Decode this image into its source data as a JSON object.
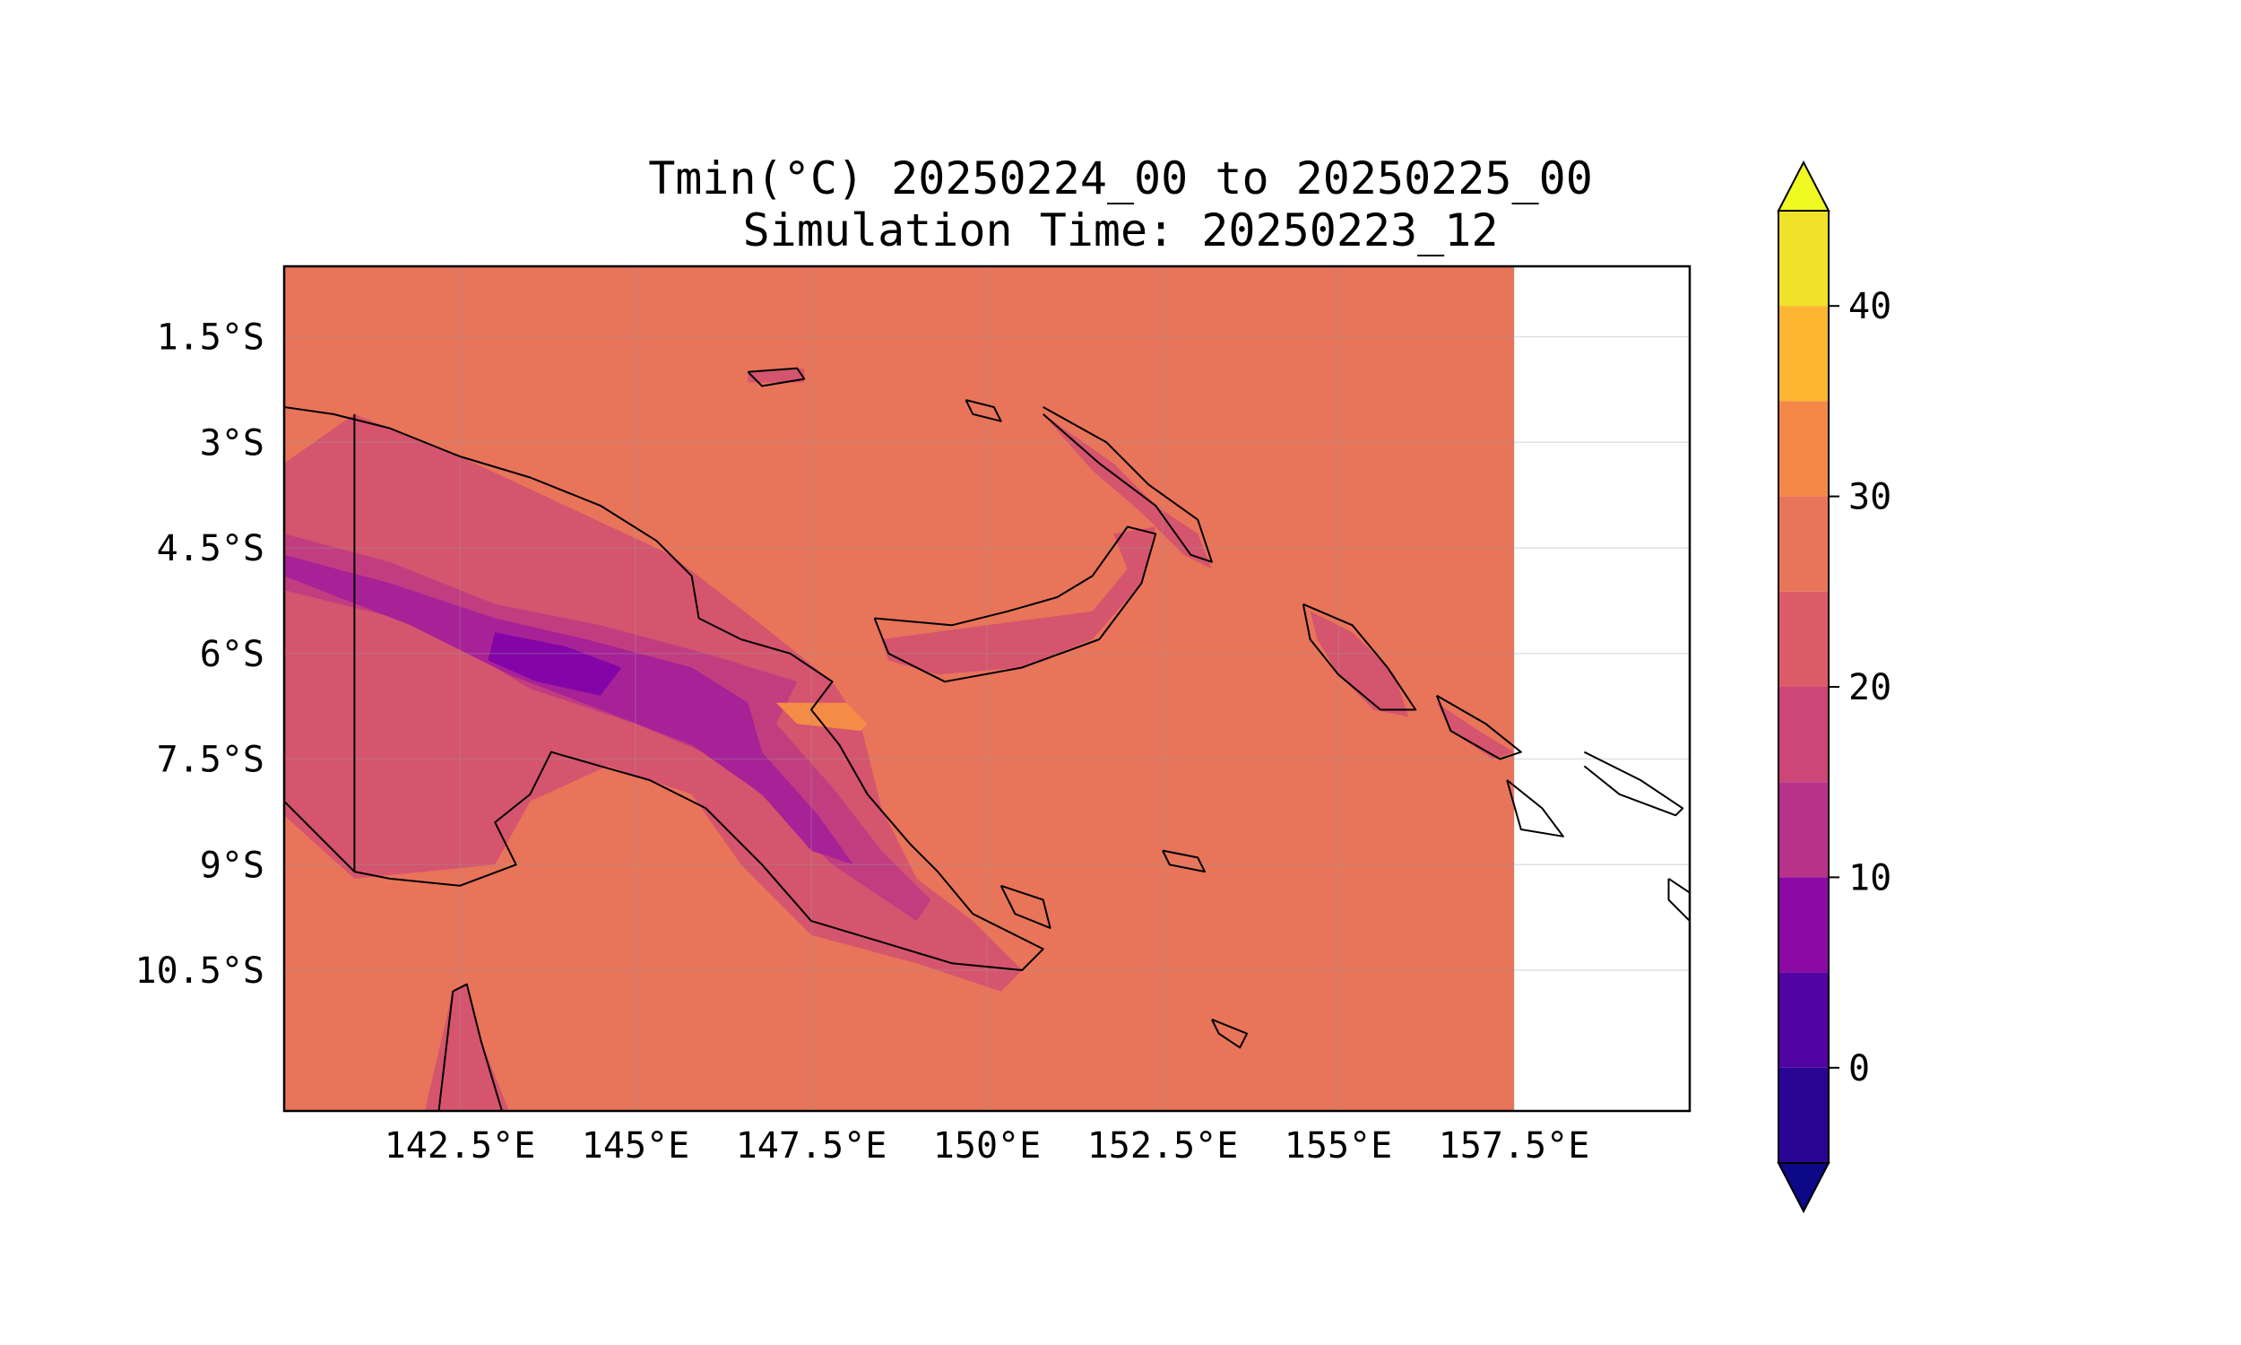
{
  "title": {
    "line1": "Tmin(°C) 20250224_00 to 20250225_00",
    "line2": "Simulation Time: 20250223_12"
  },
  "map": {
    "extent_lon": [
      140.0,
      160.0
    ],
    "extent_lat": [
      -12.5,
      -0.5
    ],
    "data_lon_max": 157.5,
    "background_color": "#e8745a",
    "missing_color": "#ffffff",
    "coastline_color": "#000000",
    "gridlines": true,
    "x_ticks": [
      {
        "value": 142.5,
        "label": "142.5°E"
      },
      {
        "value": 145.0,
        "label": "145°E"
      },
      {
        "value": 147.5,
        "label": "147.5°E"
      },
      {
        "value": 150.0,
        "label": "150°E"
      },
      {
        "value": 152.5,
        "label": "152.5°E"
      },
      {
        "value": 155.0,
        "label": "155°E"
      },
      {
        "value": 157.5,
        "label": "157.5°E"
      }
    ],
    "y_ticks": [
      {
        "value": -1.5,
        "label": "1.5°S"
      },
      {
        "value": -3.0,
        "label": "3°S"
      },
      {
        "value": -4.5,
        "label": "4.5°S"
      },
      {
        "value": -6.0,
        "label": "6°S"
      },
      {
        "value": -7.5,
        "label": "7.5°S"
      },
      {
        "value": -9.0,
        "label": "9°S"
      },
      {
        "value": -10.5,
        "label": "10.5°S"
      }
    ],
    "regions": [
      {
        "name": "new-guinea-lowland",
        "level": 22.5,
        "color": "#d5546e",
        "points": [
          [
            140.0,
            -3.3
          ],
          [
            141.0,
            -2.6
          ],
          [
            142.5,
            -3.2
          ],
          [
            144.0,
            -3.9
          ],
          [
            145.5,
            -4.6
          ],
          [
            146.8,
            -5.6
          ],
          [
            147.8,
            -6.4
          ],
          [
            148.2,
            -7.0
          ],
          [
            148.5,
            -8.2
          ],
          [
            149.0,
            -9.2
          ],
          [
            149.8,
            -9.8
          ],
          [
            150.5,
            -10.5
          ],
          [
            150.2,
            -10.8
          ],
          [
            149.0,
            -10.4
          ],
          [
            147.5,
            -10.0
          ],
          [
            146.5,
            -9.0
          ],
          [
            145.8,
            -8.0
          ],
          [
            144.6,
            -7.6
          ],
          [
            143.5,
            -8.1
          ],
          [
            143.0,
            -9.0
          ],
          [
            141.0,
            -9.2
          ],
          [
            140.0,
            -8.3
          ]
        ]
      },
      {
        "name": "highlands-outer",
        "level": 17.5,
        "color": "#c23d80",
        "points": [
          [
            140.0,
            -4.3
          ],
          [
            141.5,
            -4.7
          ],
          [
            143.0,
            -5.3
          ],
          [
            144.5,
            -5.6
          ],
          [
            146.0,
            -6.0
          ],
          [
            147.3,
            -6.4
          ],
          [
            147.0,
            -7.0
          ],
          [
            147.8,
            -7.9
          ],
          [
            148.5,
            -8.8
          ],
          [
            149.2,
            -9.5
          ],
          [
            149.0,
            -9.8
          ],
          [
            147.8,
            -9.0
          ],
          [
            147.0,
            -8.2
          ],
          [
            146.2,
            -7.5
          ],
          [
            145.0,
            -7.0
          ],
          [
            143.5,
            -6.5
          ],
          [
            142.0,
            -5.6
          ],
          [
            140.0,
            -5.1
          ]
        ]
      },
      {
        "name": "highlands-inner",
        "level": 12.5,
        "color": "#a72197",
        "points": [
          [
            140.0,
            -4.6
          ],
          [
            141.5,
            -5.0
          ],
          [
            143.0,
            -5.5
          ],
          [
            144.3,
            -5.8
          ],
          [
            145.8,
            -6.2
          ],
          [
            146.6,
            -6.7
          ],
          [
            146.8,
            -7.4
          ],
          [
            147.6,
            -8.3
          ],
          [
            148.1,
            -9.0
          ],
          [
            147.5,
            -8.8
          ],
          [
            146.8,
            -8.0
          ],
          [
            145.8,
            -7.3
          ],
          [
            144.5,
            -6.8
          ],
          [
            143.2,
            -6.3
          ],
          [
            141.8,
            -5.6
          ],
          [
            140.0,
            -4.9
          ]
        ]
      },
      {
        "name": "highlands-core",
        "level": 7.5,
        "color": "#8305a7",
        "points": [
          [
            143.0,
            -5.7
          ],
          [
            144.0,
            -5.9
          ],
          [
            144.8,
            -6.2
          ],
          [
            144.5,
            -6.6
          ],
          [
            143.6,
            -6.4
          ],
          [
            142.9,
            -6.1
          ]
        ]
      },
      {
        "name": "new-britain",
        "level": 22.5,
        "color": "#d5546e",
        "points": [
          [
            148.5,
            -5.8
          ],
          [
            150.0,
            -5.6
          ],
          [
            151.5,
            -5.4
          ],
          [
            152.0,
            -4.8
          ],
          [
            151.8,
            -4.3
          ],
          [
            152.4,
            -4.2
          ],
          [
            152.2,
            -5.0
          ],
          [
            151.5,
            -5.8
          ],
          [
            150.5,
            -6.2
          ],
          [
            149.3,
            -6.3
          ],
          [
            148.6,
            -6.1
          ]
        ]
      },
      {
        "name": "new-ireland",
        "level": 22.5,
        "color": "#d5546e",
        "points": [
          [
            150.8,
            -2.6
          ],
          [
            151.8,
            -3.3
          ],
          [
            152.4,
            -3.9
          ],
          [
            153.0,
            -4.3
          ],
          [
            153.2,
            -4.8
          ],
          [
            152.8,
            -4.6
          ],
          [
            152.2,
            -4.0
          ],
          [
            151.5,
            -3.4
          ]
        ]
      },
      {
        "name": "bougainville",
        "level": 22.5,
        "color": "#d5546e",
        "points": [
          [
            154.6,
            -5.4
          ],
          [
            155.2,
            -5.7
          ],
          [
            155.8,
            -6.3
          ],
          [
            156.0,
            -6.9
          ],
          [
            155.5,
            -6.8
          ],
          [
            155.0,
            -6.3
          ],
          [
            154.7,
            -5.8
          ]
        ]
      },
      {
        "name": "choiseul",
        "level": 22.5,
        "color": "#d5546e",
        "points": [
          [
            156.4,
            -6.7
          ],
          [
            157.0,
            -7.1
          ],
          [
            157.5,
            -7.4
          ],
          [
            157.2,
            -7.5
          ],
          [
            156.6,
            -7.1
          ]
        ]
      },
      {
        "name": "manus",
        "level": 22.5,
        "color": "#d5546e",
        "points": [
          [
            146.6,
            -2.0
          ],
          [
            147.4,
            -1.95
          ],
          [
            147.4,
            -2.15
          ],
          [
            146.6,
            -2.15
          ]
        ]
      },
      {
        "name": "cape-york",
        "level": 22.5,
        "color": "#d5546e",
        "points": [
          [
            142.0,
            -12.5
          ],
          [
            142.4,
            -10.8
          ],
          [
            142.6,
            -10.7
          ],
          [
            142.8,
            -11.5
          ],
          [
            143.2,
            -12.5
          ]
        ]
      },
      {
        "name": "warm-patch",
        "level": 32.5,
        "color": "#f58c46",
        "points": [
          [
            147.0,
            -6.7
          ],
          [
            148.0,
            -6.7
          ],
          [
            148.3,
            -7.0
          ],
          [
            148.2,
            -7.1
          ],
          [
            147.3,
            -7.0
          ]
        ]
      }
    ],
    "coastlines": [
      [
        [
          140.0,
          -2.5
        ],
        [
          140.7,
          -2.6
        ],
        [
          141.5,
          -2.8
        ],
        [
          142.5,
          -3.2
        ],
        [
          143.5,
          -3.5
        ],
        [
          144.5,
          -3.9
        ],
        [
          145.3,
          -4.4
        ],
        [
          145.8,
          -4.9
        ],
        [
          145.9,
          -5.5
        ],
        [
          146.5,
          -5.8
        ],
        [
          147.2,
          -6.0
        ],
        [
          147.8,
          -6.4
        ],
        [
          147.5,
          -6.8
        ],
        [
          147.9,
          -7.3
        ],
        [
          148.3,
          -8.0
        ],
        [
          148.9,
          -8.7
        ],
        [
          149.3,
          -9.1
        ],
        [
          149.8,
          -9.7
        ],
        [
          150.8,
          -10.2
        ],
        [
          150.5,
          -10.5
        ],
        [
          149.5,
          -10.4
        ],
        [
          148.5,
          -10.1
        ],
        [
          147.5,
          -9.8
        ],
        [
          146.8,
          -9.0
        ],
        [
          146.0,
          -8.2
        ],
        [
          145.2,
          -7.8
        ],
        [
          144.5,
          -7.6
        ],
        [
          143.8,
          -7.4
        ],
        [
          143.5,
          -8.0
        ],
        [
          143.0,
          -8.4
        ],
        [
          143.3,
          -9.0
        ],
        [
          142.5,
          -9.3
        ],
        [
          141.5,
          -9.2
        ],
        [
          141.0,
          -9.1
        ],
        [
          140.0,
          -8.1
        ]
      ],
      [
        [
          141.0,
          -2.6
        ],
        [
          141.0,
          -9.1
        ]
      ],
      [
        [
          148.4,
          -5.5
        ],
        [
          149.5,
          -5.6
        ],
        [
          150.3,
          -5.4
        ],
        [
          151.0,
          -5.2
        ],
        [
          151.5,
          -4.9
        ],
        [
          152.0,
          -4.2
        ],
        [
          152.4,
          -4.3
        ],
        [
          152.2,
          -5.0
        ],
        [
          151.6,
          -5.8
        ],
        [
          150.5,
          -6.2
        ],
        [
          149.4,
          -6.4
        ],
        [
          148.6,
          -6.0
        ],
        [
          148.4,
          -5.5
        ]
      ],
      [
        [
          150.8,
          -2.5
        ],
        [
          151.7,
          -3.0
        ],
        [
          152.3,
          -3.6
        ],
        [
          153.0,
          -4.1
        ],
        [
          153.2,
          -4.7
        ],
        [
          152.9,
          -4.6
        ],
        [
          152.4,
          -3.9
        ],
        [
          151.6,
          -3.3
        ],
        [
          150.8,
          -2.6
        ]
      ],
      [
        [
          154.5,
          -5.3
        ],
        [
          155.2,
          -5.6
        ],
        [
          155.7,
          -6.2
        ],
        [
          156.1,
          -6.8
        ],
        [
          155.6,
          -6.8
        ],
        [
          155.0,
          -6.3
        ],
        [
          154.6,
          -5.8
        ],
        [
          154.5,
          -5.3
        ]
      ],
      [
        [
          156.4,
          -6.6
        ],
        [
          157.1,
          -7.0
        ],
        [
          157.6,
          -7.4
        ],
        [
          157.3,
          -7.5
        ],
        [
          156.6,
          -7.1
        ],
        [
          156.4,
          -6.6
        ]
      ],
      [
        [
          158.5,
          -7.4
        ],
        [
          159.3,
          -7.8
        ],
        [
          159.9,
          -8.2
        ],
        [
          159.8,
          -8.3
        ],
        [
          159.0,
          -8.0
        ],
        [
          158.5,
          -7.6
        ]
      ],
      [
        [
          146.6,
          -2.0
        ],
        [
          147.3,
          -1.95
        ],
        [
          147.4,
          -2.1
        ],
        [
          146.8,
          -2.2
        ],
        [
          146.6,
          -2.0
        ]
      ],
      [
        [
          142.2,
          -12.5
        ],
        [
          142.4,
          -10.8
        ],
        [
          142.6,
          -10.7
        ],
        [
          142.8,
          -11.5
        ],
        [
          143.1,
          -12.5
        ]
      ],
      [
        [
          150.2,
          -9.3
        ],
        [
          150.8,
          -9.5
        ],
        [
          150.9,
          -9.9
        ],
        [
          150.4,
          -9.7
        ],
        [
          150.2,
          -9.3
        ]
      ],
      [
        [
          152.5,
          -8.8
        ],
        [
          153.0,
          -8.9
        ],
        [
          153.1,
          -9.1
        ],
        [
          152.6,
          -9.0
        ],
        [
          152.5,
          -8.8
        ]
      ],
      [
        [
          153.2,
          -11.2
        ],
        [
          153.7,
          -11.4
        ],
        [
          153.6,
          -11.6
        ],
        [
          153.3,
          -11.4
        ],
        [
          153.2,
          -11.2
        ]
      ],
      [
        [
          159.7,
          -9.2
        ],
        [
          160.0,
          -9.4
        ],
        [
          160.0,
          -9.8
        ],
        [
          159.7,
          -9.5
        ],
        [
          159.7,
          -9.2
        ]
      ],
      [
        [
          149.7,
          -2.4
        ],
        [
          150.1,
          -2.5
        ],
        [
          150.2,
          -2.7
        ],
        [
          149.8,
          -2.6
        ],
        [
          149.7,
          -2.4
        ]
      ],
      [
        [
          157.4,
          -7.8
        ],
        [
          157.9,
          -8.2
        ],
        [
          158.2,
          -8.6
        ],
        [
          157.6,
          -8.5
        ],
        [
          157.4,
          -7.8
        ]
      ]
    ]
  },
  "colorbar": {
    "levels": [
      -5,
      0,
      5,
      10,
      15,
      20,
      25,
      30,
      35,
      40,
      45
    ],
    "under_color": "#0d0887",
    "over_color": "#f0f921",
    "colors": [
      "#2a0593",
      "#5302a3",
      "#8b0aa5",
      "#b83289",
      "#cc4778",
      "#db5c68",
      "#e8745a",
      "#f48849",
      "#feb531",
      "#f0e228"
    ],
    "ticks": [
      {
        "value": 0,
        "label": "0"
      },
      {
        "value": 10,
        "label": "10"
      },
      {
        "value": 20,
        "label": "20"
      },
      {
        "value": 30,
        "label": "30"
      },
      {
        "value": 40,
        "label": "40"
      }
    ]
  }
}
